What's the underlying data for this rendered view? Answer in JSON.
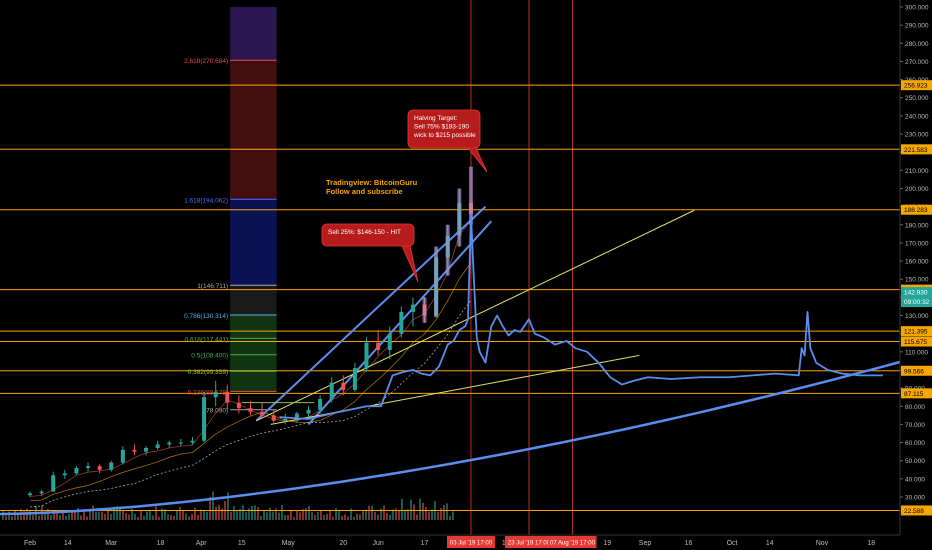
{
  "chart_data": {
    "type": "line",
    "title": "",
    "xlabel": "",
    "ylabel": "",
    "grid": false,
    "ylim": [
      20,
      300
    ],
    "y_ticks": [
      30,
      40,
      50,
      60,
      70,
      80,
      90,
      100,
      110,
      120,
      130,
      140,
      150,
      160,
      170,
      180,
      190,
      200,
      210,
      220,
      230,
      240,
      250,
      260,
      270,
      280,
      290,
      300
    ],
    "x_ticks": [
      {
        "label": "Feb",
        "date": "2019-02-01"
      },
      {
        "label": "14",
        "date": "2019-02-14"
      },
      {
        "label": "Mar",
        "date": "2019-03-01"
      },
      {
        "label": "18",
        "date": "2019-03-18"
      },
      {
        "label": "Apr",
        "date": "2019-04-01"
      },
      {
        "label": "15",
        "date": "2019-04-15"
      },
      {
        "label": "May",
        "date": "2019-05-01"
      },
      {
        "label": "20",
        "date": "2019-05-20"
      },
      {
        "label": "Jun",
        "date": "2019-06-01"
      },
      {
        "label": "17",
        "date": "2019-06-17"
      },
      {
        "label": "15",
        "date": "2019-07-15"
      },
      {
        "label": "19",
        "date": "2019-08-19"
      },
      {
        "label": "Sep",
        "date": "2019-09-01"
      },
      {
        "label": "16",
        "date": "2019-09-16"
      },
      {
        "label": "Oct",
        "date": "2019-10-01"
      },
      {
        "label": "14",
        "date": "2019-10-14"
      },
      {
        "label": "Nov",
        "date": "2019-11-01"
      },
      {
        "label": "18",
        "date": "2019-11-18"
      }
    ],
    "date_markers": [
      {
        "label": "03 Jul '19   17:00",
        "date": "2019-07-03"
      },
      {
        "label": "23 Jul '19   17:00",
        "date": "2019-07-23"
      },
      {
        "label": "07 Aug '19   17:00",
        "date": "2019-08-07"
      }
    ],
    "price_levels": [
      {
        "label": "256.923",
        "value": 256.923,
        "color": "#f7a600"
      },
      {
        "label": "221.583",
        "value": 221.583,
        "color": "#f7a600"
      },
      {
        "label": "188.283",
        "value": 188.283,
        "color": "#f7a600"
      },
      {
        "label": "144.281",
        "value": 144.281,
        "color": "#f7a600"
      },
      {
        "label": "121.395",
        "value": 121.395,
        "color": "#f7a600"
      },
      {
        "label": "115.675",
        "value": 115.675,
        "color": "#f7a600"
      },
      {
        "label": "99.566",
        "value": 99.566,
        "color": "#f7a600"
      },
      {
        "label": "87.115",
        "value": 87.115,
        "color": "#f7a600"
      },
      {
        "label": "22.588",
        "value": 22.588,
        "color": "#f7a600"
      }
    ],
    "current_price": {
      "label": "142.930",
      "value": 142.93,
      "countdown": "09:00:32",
      "color": "#26a69a"
    },
    "fib_levels": [
      {
        "label": "2.618(270.684)",
        "value": 270.684,
        "color": "#e84d4d"
      },
      {
        "label": "1.618(194.062)",
        "value": 194.062,
        "color": "#4b6bff"
      },
      {
        "label": "1(146.711)",
        "value": 146.711,
        "color": "#aaaaaa"
      },
      {
        "label": "0.786(130.314)",
        "value": 130.314,
        "color": "#4db6e8"
      },
      {
        "label": "0.618(117.441)",
        "value": 117.441,
        "color": "#4caf50"
      },
      {
        "label": "0.5(108.400)",
        "value": 108.4,
        "color": "#4caf50"
      },
      {
        "label": "0.382(99.359)",
        "value": 99.359,
        "color": "#8bc34a"
      },
      {
        "label": "0.236(88.178)",
        "value": 88.178,
        "color": "#e84d4d"
      },
      {
        "label": "(78.090)",
        "value": 78.09,
        "color": "#aaaaaa"
      }
    ],
    "fib_range": {
      "start": "2019-04-11",
      "end": "2019-04-27"
    },
    "candles": [
      {
        "t": "2019-02-01",
        "o": 31,
        "h": 33,
        "l": 30,
        "c": 32
      },
      {
        "t": "2019-02-05",
        "o": 32,
        "h": 34,
        "l": 31,
        "c": 33
      },
      {
        "t": "2019-02-09",
        "o": 33,
        "h": 44,
        "l": 33,
        "c": 42
      },
      {
        "t": "2019-02-13",
        "o": 42,
        "h": 45,
        "l": 40,
        "c": 43
      },
      {
        "t": "2019-02-17",
        "o": 43,
        "h": 47,
        "l": 42,
        "c": 46
      },
      {
        "t": "2019-02-21",
        "o": 46,
        "h": 49,
        "l": 44,
        "c": 47
      },
      {
        "t": "2019-02-25",
        "o": 47,
        "h": 48,
        "l": 43,
        "c": 45
      },
      {
        "t": "2019-03-01",
        "o": 45,
        "h": 50,
        "l": 44,
        "c": 49
      },
      {
        "t": "2019-03-05",
        "o": 49,
        "h": 58,
        "l": 48,
        "c": 56
      },
      {
        "t": "2019-03-09",
        "o": 56,
        "h": 59,
        "l": 53,
        "c": 55
      },
      {
        "t": "2019-03-13",
        "o": 55,
        "h": 58,
        "l": 53,
        "c": 57
      },
      {
        "t": "2019-03-17",
        "o": 57,
        "h": 61,
        "l": 56,
        "c": 59
      },
      {
        "t": "2019-03-21",
        "o": 59,
        "h": 61,
        "l": 57,
        "c": 60
      },
      {
        "t": "2019-03-25",
        "o": 60,
        "h": 62,
        "l": 58,
        "c": 60
      },
      {
        "t": "2019-03-29",
        "o": 60,
        "h": 63,
        "l": 59,
        "c": 61
      },
      {
        "t": "2019-04-02",
        "o": 61,
        "h": 88,
        "l": 60,
        "c": 85
      },
      {
        "t": "2019-04-06",
        "o": 85,
        "h": 94,
        "l": 80,
        "c": 88
      },
      {
        "t": "2019-04-10",
        "o": 88,
        "h": 92,
        "l": 78,
        "c": 82
      },
      {
        "t": "2019-04-14",
        "o": 82,
        "h": 86,
        "l": 76,
        "c": 79
      },
      {
        "t": "2019-04-18",
        "o": 79,
        "h": 83,
        "l": 75,
        "c": 77
      },
      {
        "t": "2019-04-22",
        "o": 77,
        "h": 82,
        "l": 73,
        "c": 75
      },
      {
        "t": "2019-04-26",
        "o": 75,
        "h": 78,
        "l": 71,
        "c": 72
      },
      {
        "t": "2019-04-30",
        "o": 72,
        "h": 76,
        "l": 70,
        "c": 73
      },
      {
        "t": "2019-05-04",
        "o": 73,
        "h": 77,
        "l": 71,
        "c": 76
      },
      {
        "t": "2019-05-08",
        "o": 76,
        "h": 80,
        "l": 74,
        "c": 78
      },
      {
        "t": "2019-05-12",
        "o": 78,
        "h": 86,
        "l": 76,
        "c": 84
      },
      {
        "t": "2019-05-16",
        "o": 84,
        "h": 96,
        "l": 82,
        "c": 93
      },
      {
        "t": "2019-05-20",
        "o": 93,
        "h": 97,
        "l": 86,
        "c": 89
      },
      {
        "t": "2019-05-24",
        "o": 89,
        "h": 104,
        "l": 88,
        "c": 101
      },
      {
        "t": "2019-05-28",
        "o": 101,
        "h": 118,
        "l": 99,
        "c": 115
      },
      {
        "t": "2019-06-01",
        "o": 115,
        "h": 122,
        "l": 108,
        "c": 111
      },
      {
        "t": "2019-06-05",
        "o": 111,
        "h": 124,
        "l": 106,
        "c": 120
      },
      {
        "t": "2019-06-09",
        "o": 120,
        "h": 135,
        "l": 118,
        "c": 132
      },
      {
        "t": "2019-06-13",
        "o": 132,
        "h": 140,
        "l": 124,
        "c": 136
      },
      {
        "t": "2019-06-17",
        "o": 136,
        "h": 140,
        "l": 126,
        "c": 130
      },
      {
        "t": "2019-06-21",
        "o": 130,
        "h": 168,
        "l": 129,
        "c": 162
      },
      {
        "t": "2019-06-25",
        "o": 162,
        "h": 180,
        "l": 152,
        "c": 174
      },
      {
        "t": "2019-06-29",
        "o": 174,
        "h": 200,
        "l": 168,
        "c": 192
      },
      {
        "t": "2019-07-03",
        "o": 192,
        "h": 212,
        "l": 180,
        "c": 186
      }
    ],
    "series": [
      {
        "values": [
          {
            "t": "2019-04-28",
            "v": 74
          },
          {
            "t": "2019-05-08",
            "v": 73
          },
          {
            "t": "2019-05-16",
            "v": 76
          },
          {
            "t": "2019-05-22",
            "v": 78
          },
          {
            "t": "2019-05-28",
            "v": 80
          },
          {
            "t": "2019-06-02",
            "v": 80
          },
          {
            "t": "2019-06-06",
            "v": 97
          },
          {
            "t": "2019-06-10",
            "v": 99
          },
          {
            "t": "2019-06-13",
            "v": 100
          },
          {
            "t": "2019-06-16",
            "v": 98
          },
          {
            "t": "2019-06-19",
            "v": 97
          },
          {
            "t": "2019-06-22",
            "v": 102
          },
          {
            "t": "2019-06-25",
            "v": 114
          },
          {
            "t": "2019-06-27",
            "v": 116
          },
          {
            "t": "2019-06-29",
            "v": 122
          },
          {
            "t": "2019-07-01",
            "v": 124
          },
          {
            "t": "2019-07-02",
            "v": 128
          },
          {
            "t": "2019-07-03",
            "v": 186
          },
          {
            "t": "2019-07-04",
            "v": 150
          },
          {
            "t": "2019-07-05",
            "v": 118
          },
          {
            "t": "2019-07-06",
            "v": 110
          },
          {
            "t": "2019-07-08",
            "v": 104
          },
          {
            "t": "2019-07-10",
            "v": 124
          },
          {
            "t": "2019-07-12",
            "v": 130
          },
          {
            "t": "2019-07-14",
            "v": 124
          },
          {
            "t": "2019-07-16",
            "v": 119
          },
          {
            "t": "2019-07-18",
            "v": 122
          },
          {
            "t": "2019-07-20",
            "v": 121
          },
          {
            "t": "2019-07-23",
            "v": 128
          },
          {
            "t": "2019-07-25",
            "v": 120
          },
          {
            "t": "2019-07-28",
            "v": 118
          },
          {
            "t": "2019-08-01",
            "v": 114
          },
          {
            "t": "2019-08-05",
            "v": 116
          },
          {
            "t": "2019-08-08",
            "v": 112
          },
          {
            "t": "2019-08-12",
            "v": 110
          },
          {
            "t": "2019-08-16",
            "v": 104
          },
          {
            "t": "2019-08-20",
            "v": 96
          },
          {
            "t": "2019-08-24",
            "v": 92
          },
          {
            "t": "2019-08-28",
            "v": 94
          },
          {
            "t": "2019-09-02",
            "v": 96
          },
          {
            "t": "2019-09-10",
            "v": 95
          },
          {
            "t": "2019-09-20",
            "v": 96
          },
          {
            "t": "2019-09-30",
            "v": 96
          },
          {
            "t": "2019-10-08",
            "v": 97
          },
          {
            "t": "2019-10-16",
            "v": 98
          },
          {
            "t": "2019-10-24",
            "v": 97
          },
          {
            "t": "2019-10-25",
            "v": 112
          },
          {
            "t": "2019-10-26",
            "v": 108
          },
          {
            "t": "2019-10-27",
            "v": 132
          },
          {
            "t": "2019-10-28",
            "v": 112
          },
          {
            "t": "2019-10-30",
            "v": 104
          },
          {
            "t": "2019-11-03",
            "v": 100
          },
          {
            "t": "2019-11-08",
            "v": 98
          },
          {
            "t": "2019-11-14",
            "v": 97
          },
          {
            "t": "2019-11-22",
            "v": 97
          }
        ]
      }
    ],
    "annotations": [
      {
        "text": [
          "Halving Target:",
          "Sell 75% $183-190",
          "wick to $215 possible"
        ],
        "type": "callout",
        "color": "#b71c1c"
      },
      {
        "text": [
          "Sell 25%: $146-150 - HIT"
        ],
        "type": "callout",
        "color": "#b71c1c"
      },
      {
        "text": [
          "Tradingview: BitcoinGuru",
          "Follow and subscribe"
        ],
        "type": "label",
        "color": "#f7a600"
      }
    ]
  }
}
